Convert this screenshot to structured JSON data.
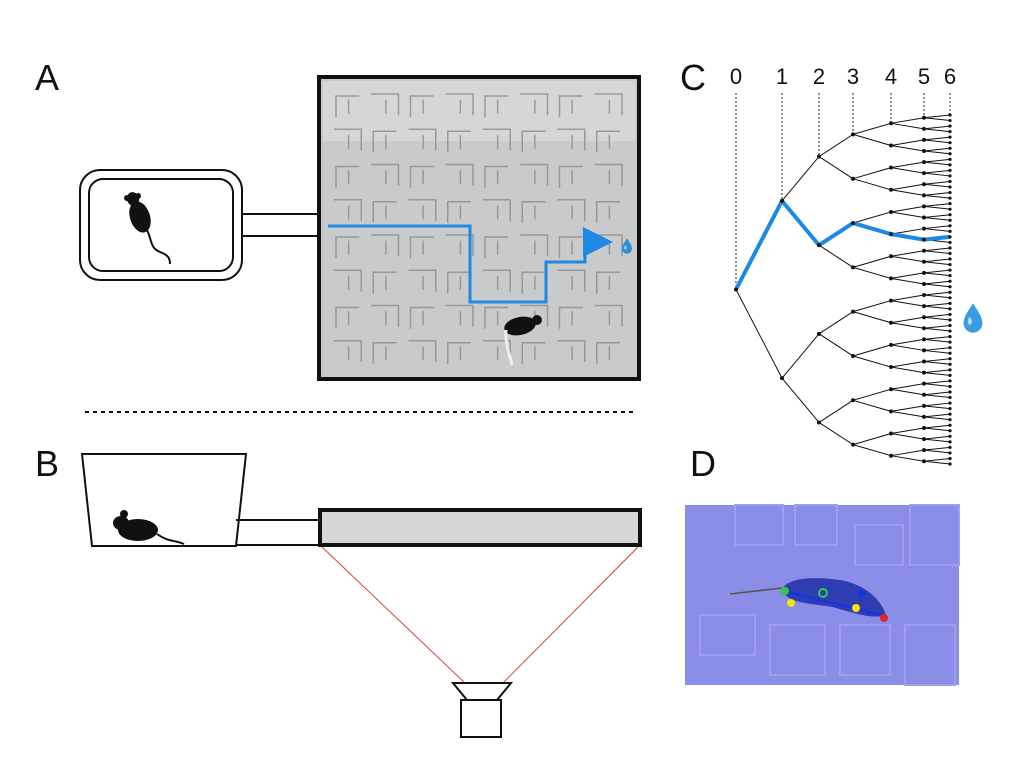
{
  "panel_labels": {
    "a": "A",
    "b": "B",
    "c": "C",
    "d": "D"
  },
  "tree": {
    "levels": [
      "0",
      "1",
      "2",
      "3",
      "4",
      "5",
      "6"
    ],
    "depth": 6,
    "highlight_path": [
      0,
      1,
      0,
      1,
      1,
      0
    ]
  },
  "colors": {
    "path": "#1e88e5",
    "water": "#2b8fd8",
    "maze_bg": "#c9cacb",
    "tray_fill": "#d4d6d8",
    "camera_lines": "#d9433b",
    "video_bg": "#8b8ee6",
    "keypoint_green": "#2ecc40",
    "keypoint_yellow": "#f5e50a",
    "keypoint_blue": "#1533e6",
    "keypoint_red": "#e8202a"
  },
  "icons": {
    "water_drop": "water-drop-icon",
    "mouse": "mouse-silhouette-icon",
    "camera": "camera-icon"
  }
}
